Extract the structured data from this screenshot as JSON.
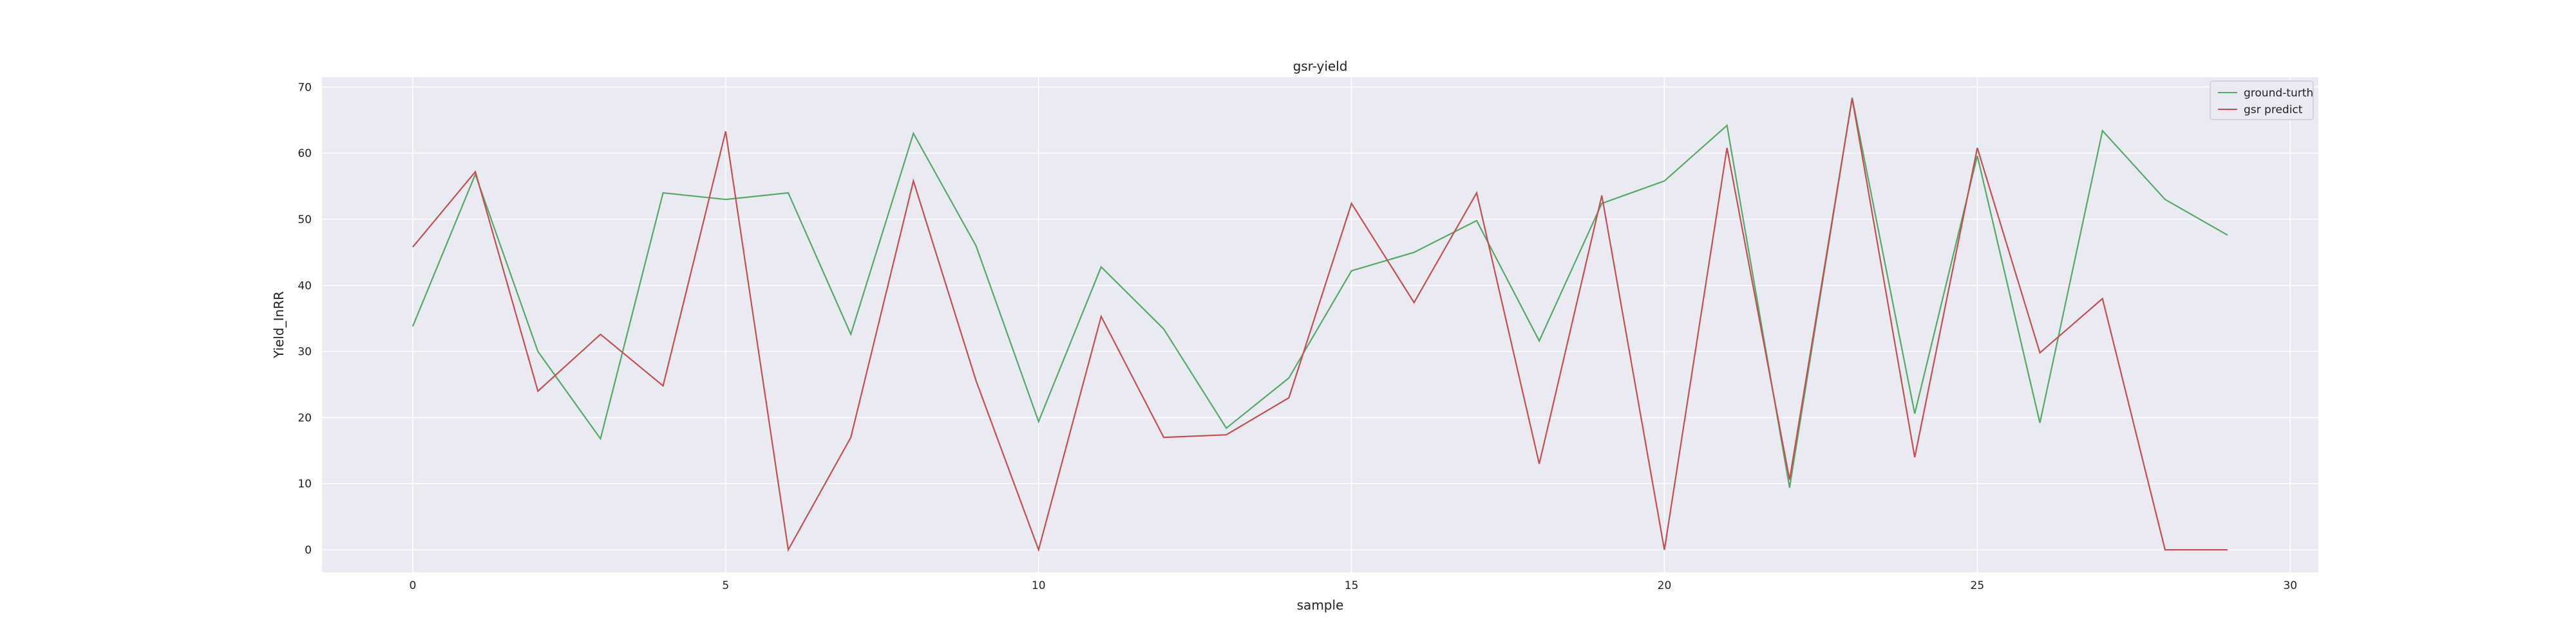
{
  "chart_data": {
    "type": "line",
    "title": "gsr-yield",
    "xlabel": "sample",
    "ylabel": "Yield_InRR",
    "x": [
      0,
      1,
      2,
      3,
      4,
      5,
      6,
      7,
      8,
      9,
      10,
      11,
      12,
      13,
      14,
      15,
      16,
      17,
      18,
      19,
      20,
      21,
      22,
      23,
      24,
      25,
      26,
      27,
      28,
      29
    ],
    "xlim": [
      -1.45,
      30.45
    ],
    "ylim": [
      -3.4,
      71.5
    ],
    "xticks": [
      0,
      5,
      10,
      15,
      20,
      25,
      30
    ],
    "yticks": [
      0,
      10,
      20,
      30,
      40,
      50,
      60,
      70
    ],
    "grid": true,
    "legend_position": "top-right",
    "series": [
      {
        "name": "ground-turth",
        "color": "#55a868",
        "values": [
          33.8,
          56.8,
          30.0,
          16.8,
          54.0,
          53.0,
          54.0,
          32.6,
          63.0,
          46.0,
          19.4,
          42.8,
          33.4,
          18.4,
          26.0,
          42.2,
          45.0,
          49.8,
          31.6,
          52.4,
          55.8,
          64.2,
          9.4,
          68.4,
          20.6,
          59.6,
          19.2,
          63.4,
          53.0,
          47.6
        ]
      },
      {
        "name": "gsr predict",
        "color": "#c44e52",
        "values": [
          45.8,
          57.2,
          24.0,
          32.6,
          24.8,
          63.3,
          0.0,
          17.0,
          55.8,
          25.6,
          0.0,
          35.3,
          17.0,
          17.4,
          23.0,
          52.4,
          37.4,
          54.0,
          13.0,
          53.6,
          0.0,
          60.8,
          10.6,
          68.3,
          14.0,
          60.8,
          29.8,
          38.0,
          0.0,
          0.0
        ]
      }
    ]
  }
}
